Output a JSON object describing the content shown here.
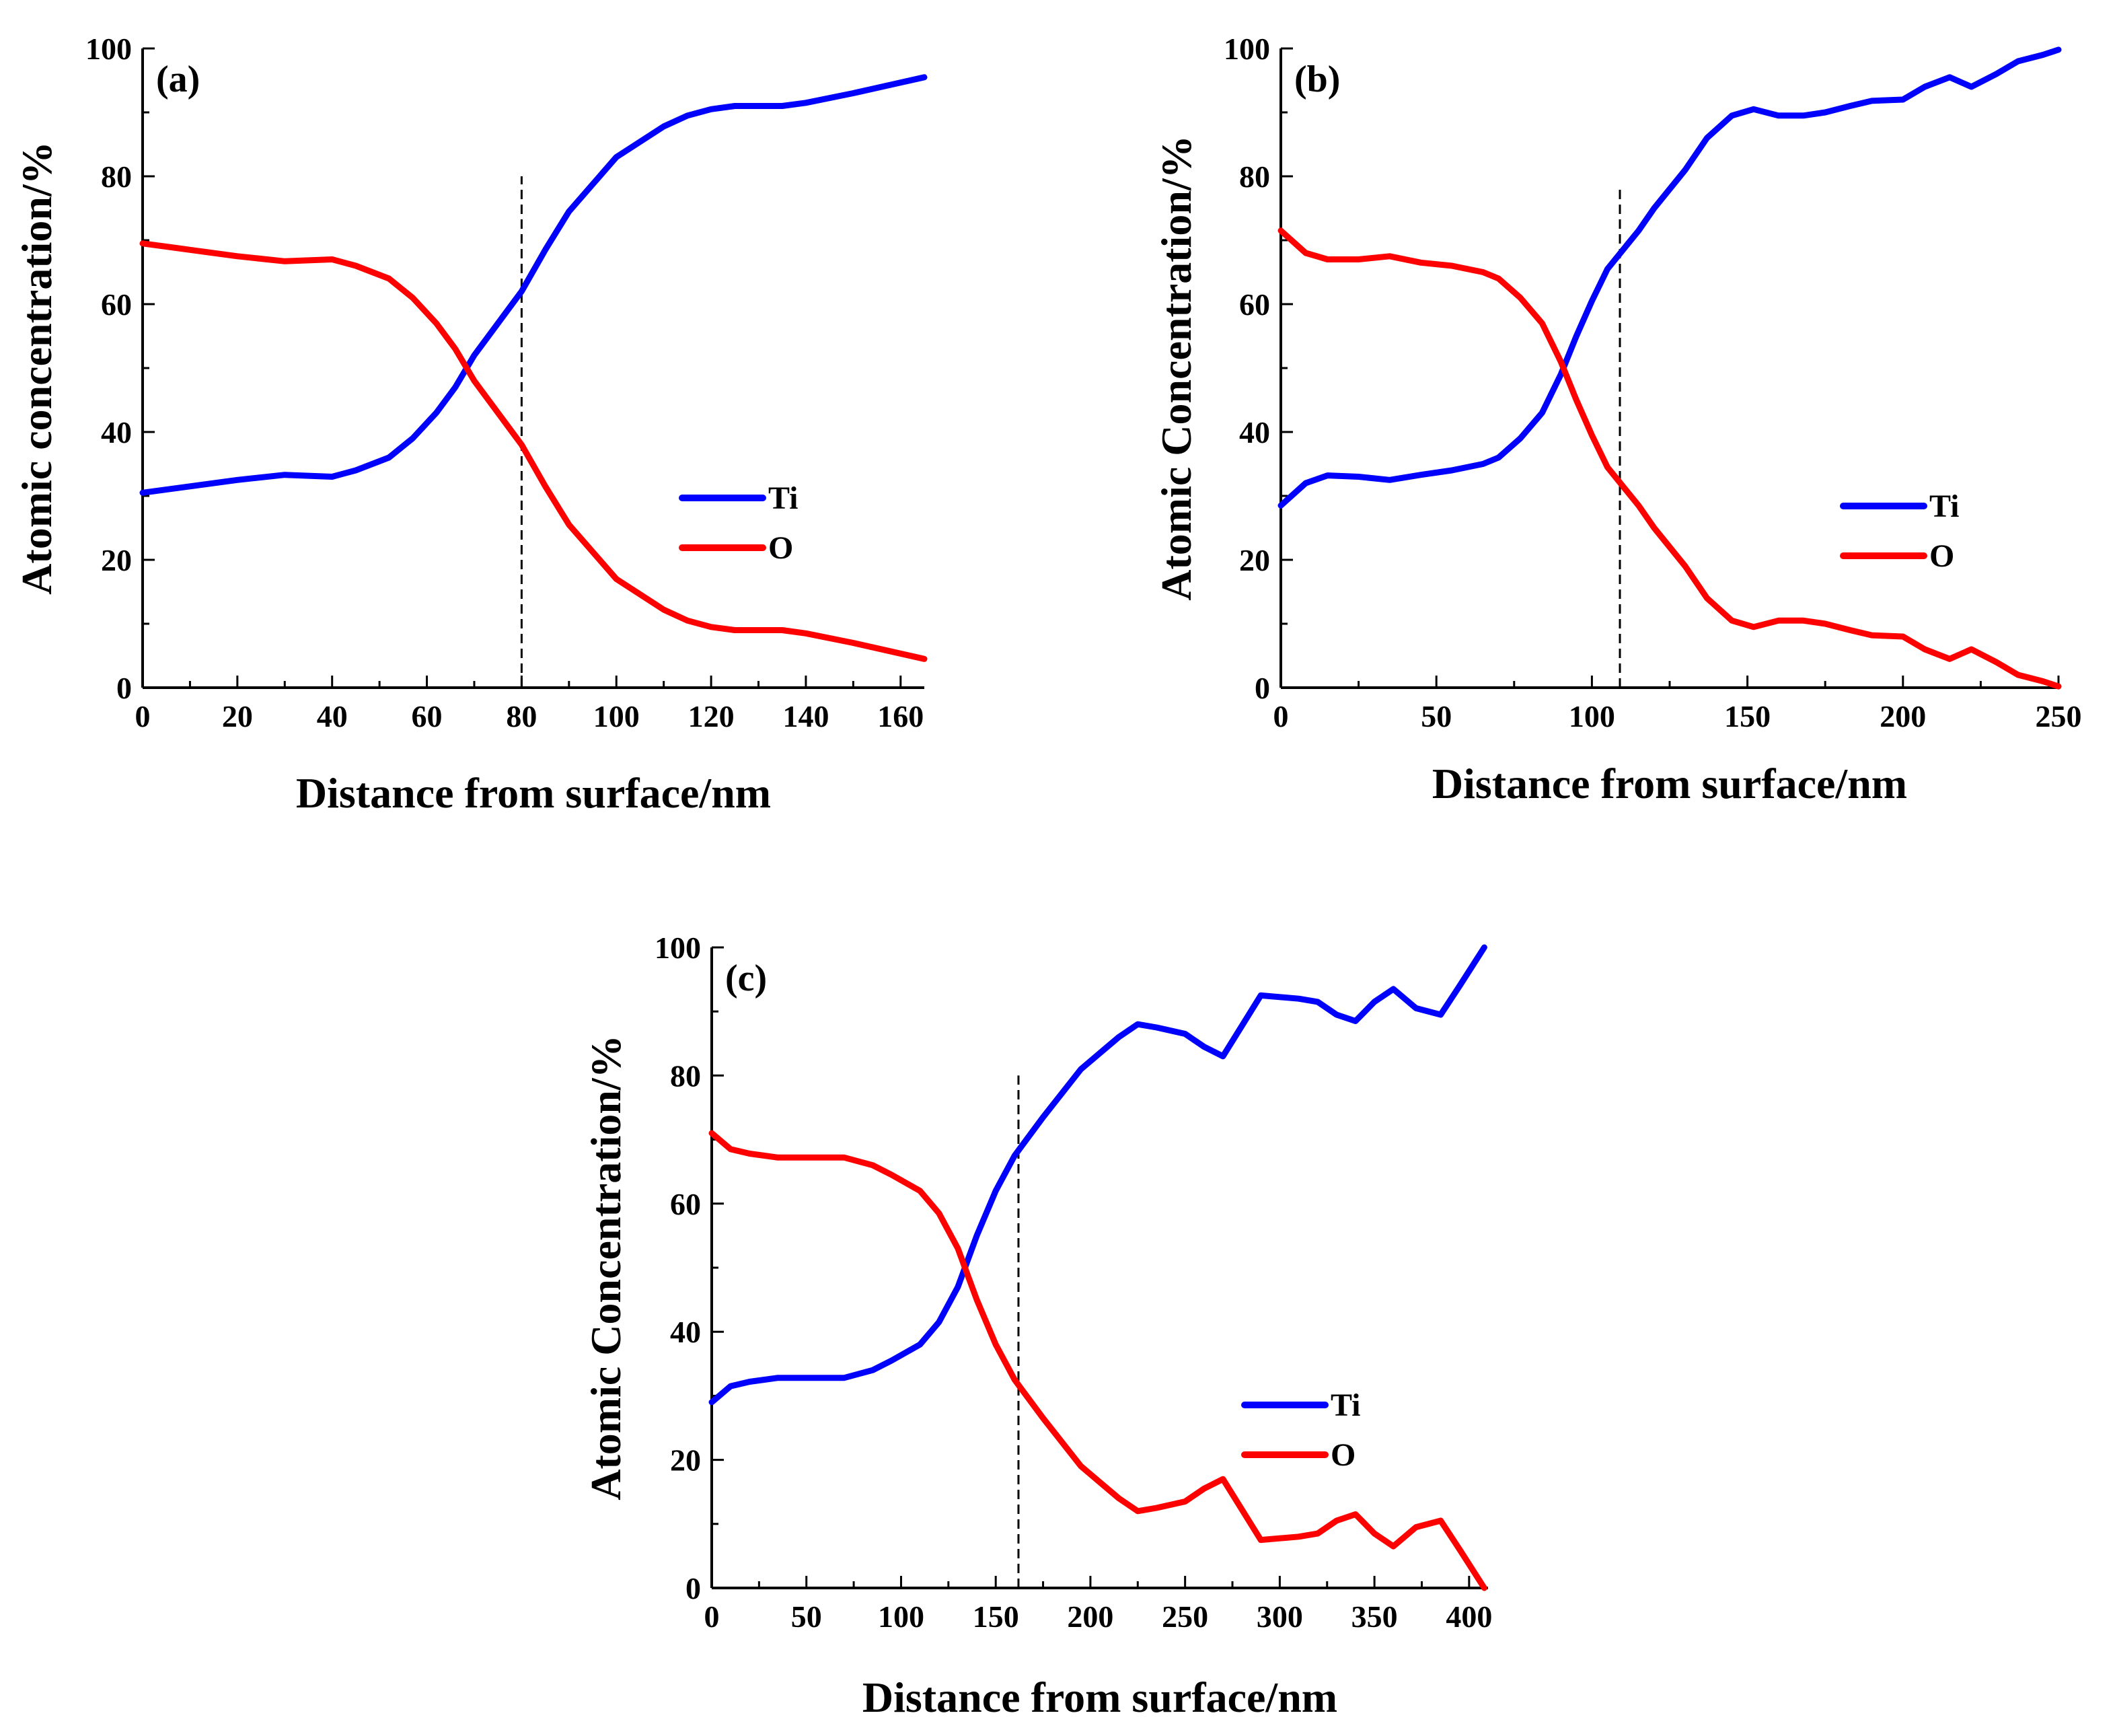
{
  "chart_data": [
    {
      "type": "line",
      "panel_label": "(a)",
      "xlabel": "Distance from surface/nm",
      "ylabel": "Atomic concentration/%",
      "xlim": [
        0,
        165
      ],
      "ylim": [
        0,
        100
      ],
      "xticks": [
        0,
        20,
        40,
        60,
        80,
        100,
        120,
        140,
        160
      ],
      "yticks": [
        0,
        20,
        40,
        60,
        80,
        100
      ],
      "marker_x": 80,
      "marker_y_top": 80,
      "legend_position": "middle-right",
      "series": [
        {
          "name": "Ti",
          "color": "#0000ff",
          "x": [
            0,
            10,
            20,
            30,
            40,
            45,
            52,
            57,
            62,
            66,
            70,
            75,
            80,
            85,
            90,
            100,
            110,
            115,
            120,
            125,
            130,
            135,
            140,
            150,
            165
          ],
          "y": [
            30.5,
            31.5,
            32.5,
            33.3,
            33,
            34,
            36,
            39,
            43,
            47,
            52,
            57,
            62,
            68.5,
            74.5,
            83,
            87.8,
            89.5,
            90.5,
            91,
            91,
            91,
            91.5,
            93,
            95.5
          ]
        },
        {
          "name": "O",
          "color": "#ff0000",
          "x": [
            0,
            10,
            20,
            30,
            40,
            45,
            52,
            57,
            62,
            66,
            70,
            75,
            80,
            85,
            90,
            100,
            110,
            115,
            120,
            125,
            130,
            135,
            140,
            150,
            165
          ],
          "y": [
            69.5,
            68.5,
            67.5,
            66.7,
            67,
            66,
            64,
            61,
            57,
            53,
            48,
            43,
            38,
            31.5,
            25.5,
            17,
            12.2,
            10.5,
            9.5,
            9,
            9,
            9,
            8.5,
            7,
            4.5
          ]
        }
      ]
    },
    {
      "type": "line",
      "panel_label": "(b)",
      "xlabel": "Distance from surface/nm",
      "ylabel": "Atomic Concentration/%",
      "xlim": [
        0,
        250
      ],
      "ylim": [
        0,
        100
      ],
      "xticks": [
        0,
        50,
        100,
        150,
        200,
        250
      ],
      "yticks": [
        0,
        20,
        40,
        60,
        80,
        100
      ],
      "marker_x": 109,
      "marker_y_top": 78,
      "legend_position": "middle-right",
      "series": [
        {
          "name": "Ti",
          "color": "#0000ff",
          "x": [
            0,
            8,
            15,
            25,
            35,
            45,
            55,
            65,
            70,
            77,
            84,
            90,
            95,
            100,
            105,
            110,
            115,
            120,
            130,
            137,
            145,
            152,
            160,
            168,
            175,
            183,
            190,
            200,
            207,
            215,
            222,
            230,
            237,
            245,
            250
          ],
          "y": [
            28.5,
            32,
            33.2,
            33,
            32.5,
            33.3,
            34,
            35,
            36,
            39,
            43,
            49,
            55,
            60.5,
            65.5,
            68.5,
            71.5,
            75,
            81,
            86,
            89.5,
            90.5,
            89.5,
            89.5,
            90,
            91,
            91.8,
            92,
            94,
            95.5,
            94,
            96,
            98,
            99,
            99.8
          ]
        },
        {
          "name": "O",
          "color": "#ff0000",
          "x": [
            0,
            8,
            15,
            25,
            35,
            45,
            55,
            65,
            70,
            77,
            84,
            90,
            95,
            100,
            105,
            110,
            115,
            120,
            130,
            137,
            145,
            152,
            160,
            168,
            175,
            183,
            190,
            200,
            207,
            215,
            222,
            230,
            237,
            245,
            250
          ],
          "y": [
            71.5,
            68,
            67,
            67,
            67.5,
            66.5,
            66,
            65,
            64,
            61,
            57,
            51,
            45,
            39.5,
            34.5,
            31.5,
            28.5,
            25,
            19,
            14,
            10.5,
            9.5,
            10.5,
            10.5,
            10,
            9,
            8.2,
            8,
            6,
            4.5,
            6,
            4,
            2,
            1,
            0.2
          ]
        }
      ]
    },
    {
      "type": "line",
      "panel_label": "(c)",
      "xlabel": "Distance from surface/nm",
      "ylabel": "Atomic Concentration/%",
      "xlim": [
        0,
        410
      ],
      "ylim": [
        0,
        100
      ],
      "xticks": [
        0,
        50,
        100,
        150,
        200,
        250,
        300,
        350,
        400
      ],
      "yticks": [
        0,
        20,
        40,
        60,
        80,
        100
      ],
      "marker_x": 162,
      "marker_y_top": 80,
      "legend_position": "lower-right",
      "series": [
        {
          "name": "Ti",
          "color": "#0000ff",
          "x": [
            0,
            10,
            20,
            35,
            50,
            70,
            85,
            95,
            110,
            120,
            130,
            140,
            150,
            160,
            175,
            195,
            215,
            225,
            235,
            250,
            260,
            270,
            290,
            310,
            320,
            330,
            340,
            350,
            360,
            372,
            385,
            395,
            408
          ],
          "y": [
            29,
            31.5,
            32.2,
            32.8,
            32.8,
            32.8,
            34,
            35.5,
            38,
            41.5,
            47,
            55,
            62,
            67.5,
            73.5,
            81,
            86,
            88,
            87.5,
            86.5,
            84.5,
            83,
            92.5,
            92,
            91.5,
            89.5,
            88.5,
            91.5,
            93.5,
            90.5,
            89.5,
            94,
            100
          ]
        },
        {
          "name": "O",
          "color": "#ff0000",
          "x": [
            0,
            10,
            20,
            35,
            50,
            70,
            85,
            95,
            110,
            120,
            130,
            140,
            150,
            160,
            175,
            195,
            215,
            225,
            235,
            250,
            260,
            270,
            290,
            310,
            320,
            330,
            340,
            350,
            360,
            372,
            385,
            395,
            408
          ],
          "y": [
            71,
            68.5,
            67.8,
            67.2,
            67.2,
            67.2,
            66,
            64.5,
            62,
            58.5,
            53,
            45,
            38,
            32.5,
            26.5,
            19,
            14,
            12,
            12.5,
            13.5,
            15.5,
            17,
            7.5,
            8,
            8.5,
            10.5,
            11.5,
            8.5,
            6.5,
            9.5,
            10.5,
            6,
            0
          ]
        }
      ]
    }
  ]
}
